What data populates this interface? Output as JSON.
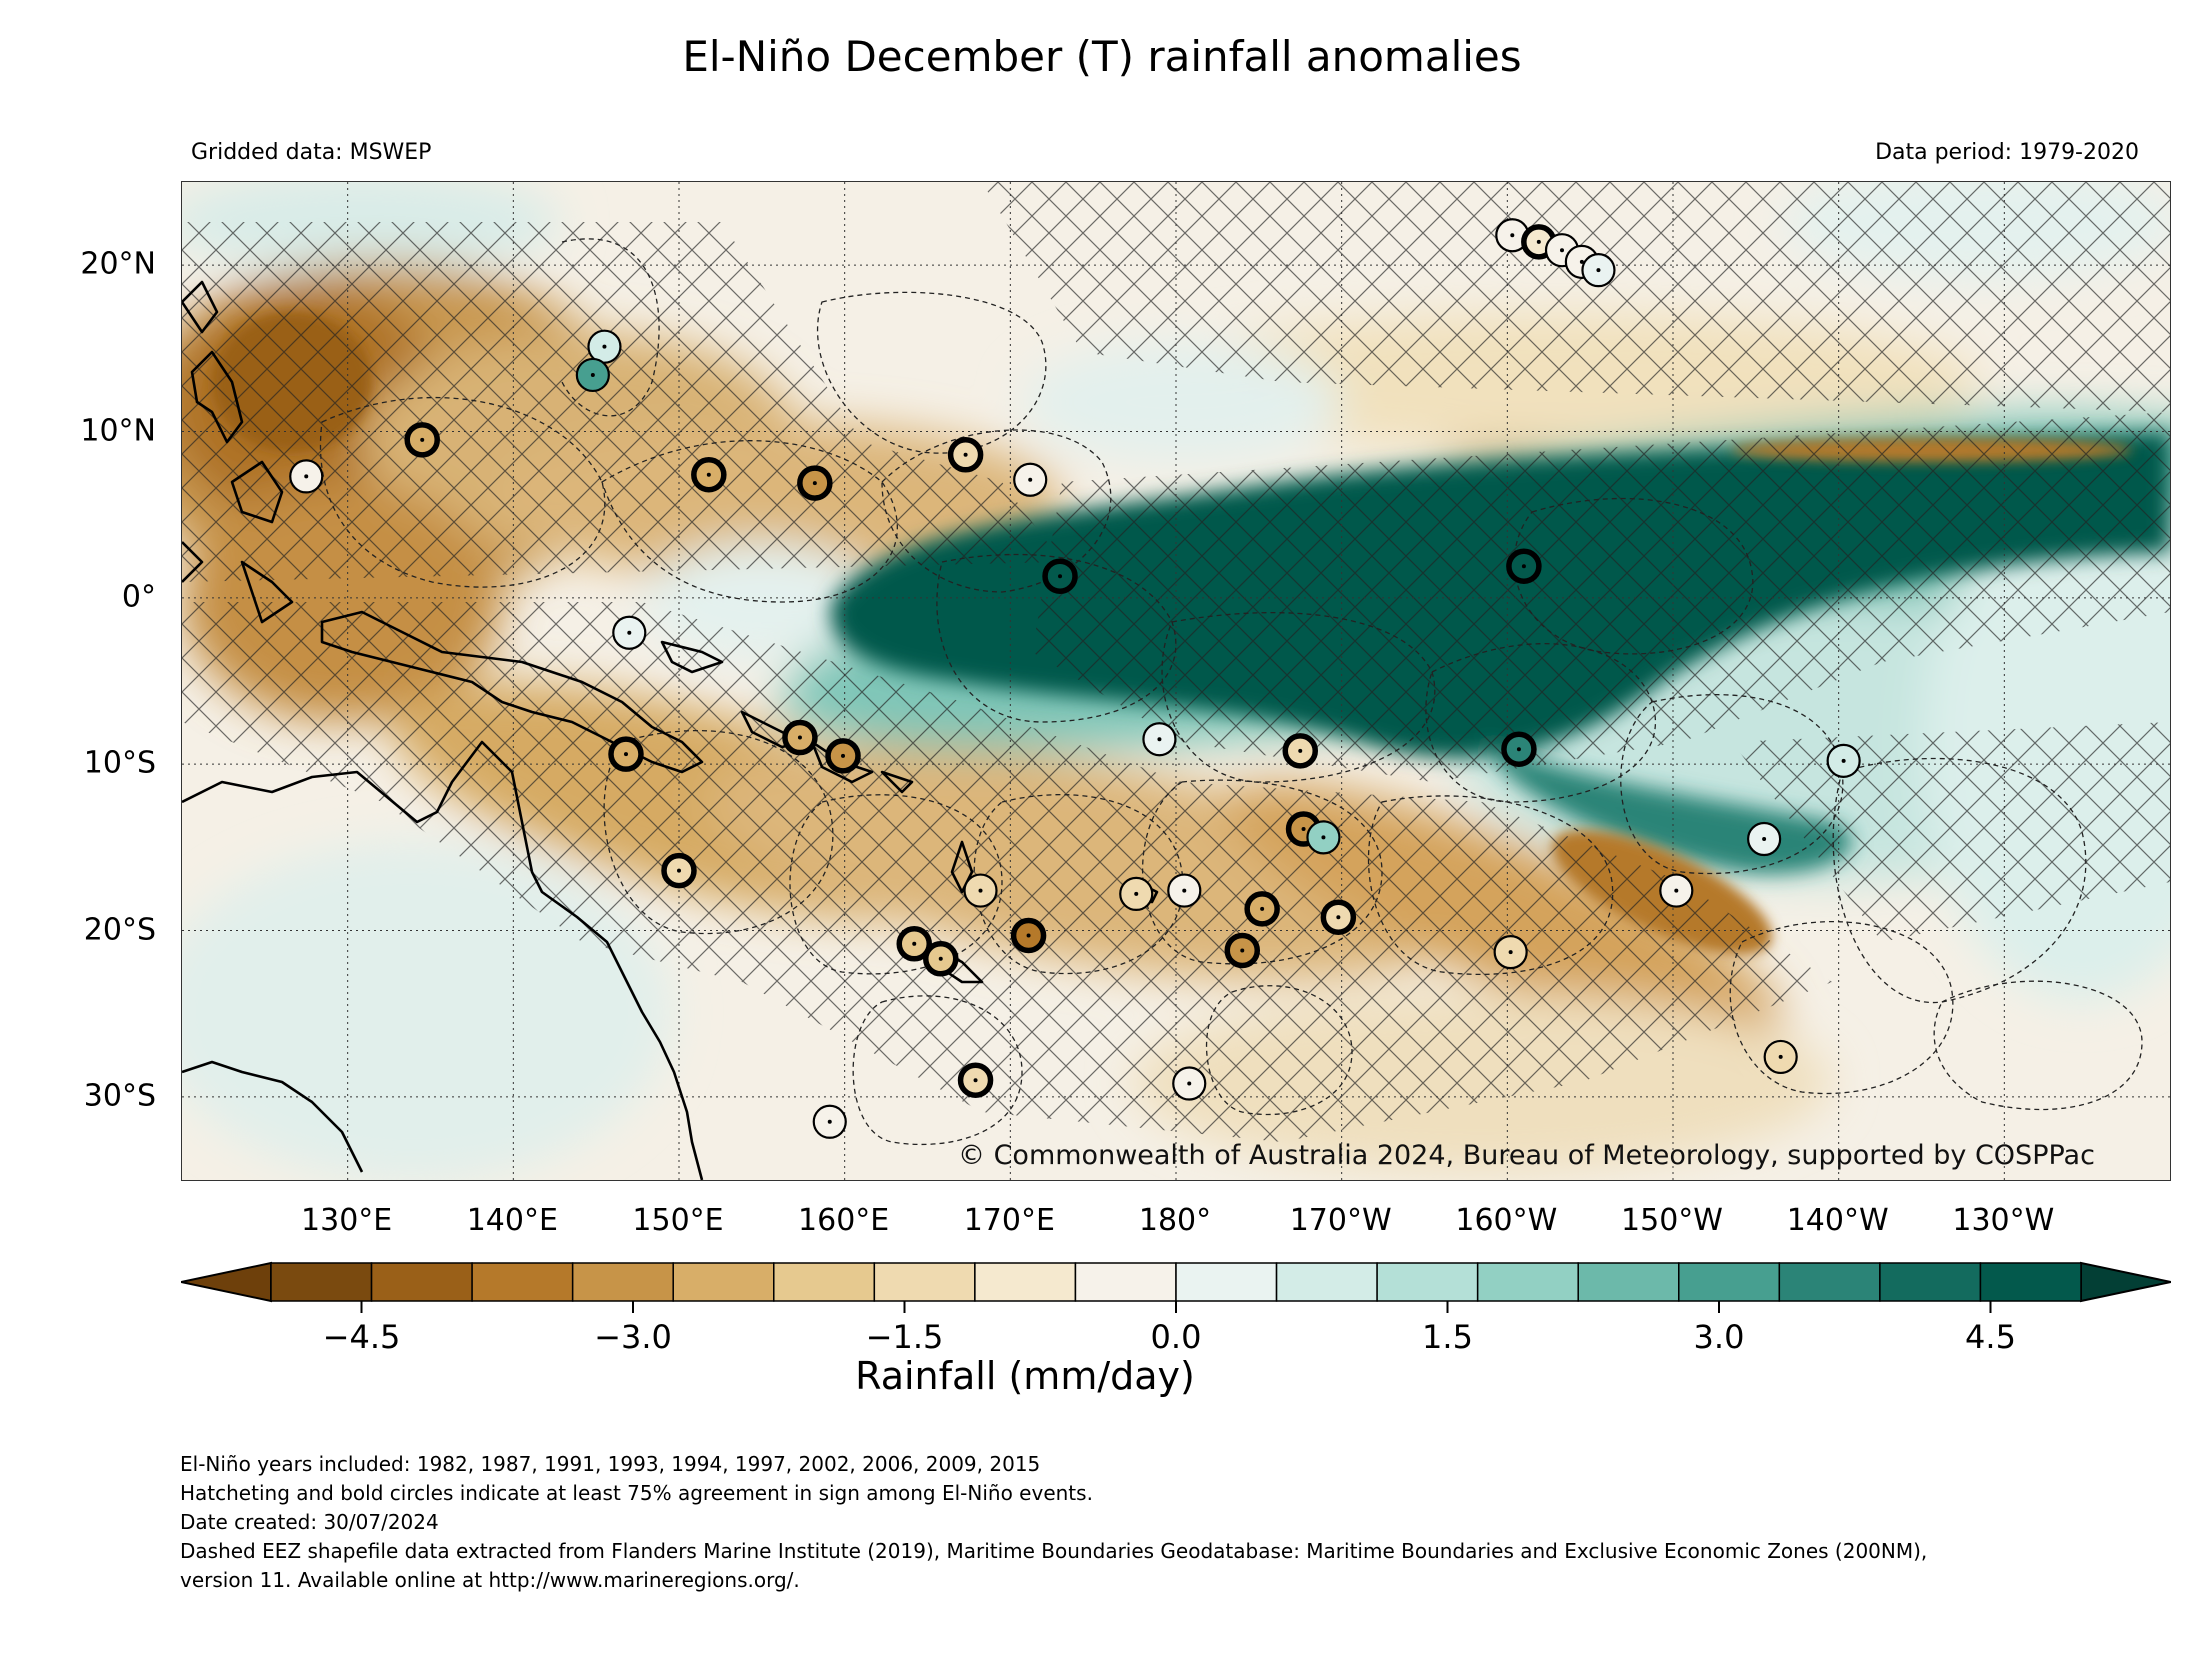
{
  "title": "El-Niño December (T) rainfall anomalies",
  "subtitle_left": "Gridded data: MSWEP",
  "subtitle_right": "Data period: 1979-2020",
  "copyright": "© Commonwealth of Australia 2024, Bureau of Meteorology, supported by COSPPac",
  "lon_labels": [
    "130°E",
    "140°E",
    "150°E",
    "160°E",
    "170°E",
    "180°",
    "170°W",
    "160°W",
    "150°W",
    "140°W",
    "130°W"
  ],
  "lat_labels": [
    "20°N",
    "10°N",
    "0°",
    "10°S",
    "20°S",
    "30°S"
  ],
  "colorbar": {
    "label": "Rainfall (mm/day)",
    "ticks": [
      "−4.5",
      "−3.0",
      "−1.5",
      "0.0",
      "1.5",
      "3.0",
      "4.5"
    ],
    "tick_values": [
      -4.5,
      -3.0,
      -1.5,
      0.0,
      1.5,
      3.0,
      4.5
    ],
    "range": [
      -5,
      5
    ],
    "colors": [
      "#7a4a0f",
      "#9a6018",
      "#b5792a",
      "#c79448",
      "#d8ae68",
      "#e6c98f",
      "#efdab0",
      "#f5e9cf",
      "#f6f2ea",
      "#eaf3f1",
      "#d3ece7",
      "#b4e0d7",
      "#92d0c3",
      "#6cb9aa",
      "#479f90",
      "#2b8477",
      "#136b5e",
      "#03594c"
    ],
    "under_color": "#6e400b",
    "over_color": "#033f35"
  },
  "notes": [
    "El-Niño years included: 1982, 1987, 1991, 1993, 1994, 1997, 2002, 2006, 2009, 2015",
    "Hatcheting and bold circles indicate at least 75% agreement in sign among El-Niño events.",
    "Date created: 30/07/2024",
    "Dashed EEZ shapefile data extracted from Flanders Marine Institute (2019), Maritime Boundaries Geodatabase: Maritime Boundaries and Exclusive Economic Zones (200NM),",
    "version 11. Available online at http://www.marineregions.org/."
  ],
  "map": {
    "lon_range_east": [
      120,
      240
    ],
    "lat_range": [
      -35,
      25
    ],
    "island_markers": [
      {
        "lon": 127.5,
        "lat": 7.3,
        "color": "#f6f2ea",
        "bold": false
      },
      {
        "lon": 134.5,
        "lat": 9.5,
        "color": "#d8ae68",
        "bold": true
      },
      {
        "lon": 145.5,
        "lat": 15.1,
        "color": "#d3ece7",
        "bold": false
      },
      {
        "lon": 144.8,
        "lat": 13.4,
        "color": "#479f90",
        "bold": false
      },
      {
        "lon": 151.8,
        "lat": 7.4,
        "color": "#d8ae68",
        "bold": true
      },
      {
        "lon": 158.2,
        "lat": 6.9,
        "color": "#c79448",
        "bold": true
      },
      {
        "lon": 167.3,
        "lat": 8.6,
        "color": "#efdab0",
        "bold": true
      },
      {
        "lon": 171.2,
        "lat": 7.1,
        "color": "#f6f2ea",
        "bold": false
      },
      {
        "lon": 173.0,
        "lat": 1.3,
        "color": "#03594c",
        "bold": true
      },
      {
        "lon": 201.0,
        "lat": 1.9,
        "color": "#03594c",
        "bold": true
      },
      {
        "lon": 200.3,
        "lat": 21.8,
        "color": "#f6f2ea",
        "bold": false
      },
      {
        "lon": 201.9,
        "lat": 21.4,
        "color": "#f5e9cf",
        "bold": true
      },
      {
        "lon": 203.3,
        "lat": 20.9,
        "color": "#f6f2ea",
        "bold": false
      },
      {
        "lon": 204.5,
        "lat": 20.2,
        "color": "#f6f2ea",
        "bold": false
      },
      {
        "lon": 205.5,
        "lat": 19.7,
        "color": "#eaf3f1",
        "bold": false
      },
      {
        "lon": 147.0,
        "lat": -2.1,
        "color": "#eaf3f1",
        "bold": false
      },
      {
        "lon": 146.8,
        "lat": -9.4,
        "color": "#d8ae68",
        "bold": true
      },
      {
        "lon": 150.0,
        "lat": -16.4,
        "color": "#efdab0",
        "bold": true
      },
      {
        "lon": 157.3,
        "lat": -8.4,
        "color": "#d8ae68",
        "bold": true
      },
      {
        "lon": 159.9,
        "lat": -9.5,
        "color": "#c79448",
        "bold": true
      },
      {
        "lon": 179.0,
        "lat": -8.5,
        "color": "#eaf3f1",
        "bold": false
      },
      {
        "lon": 187.5,
        "lat": -9.2,
        "color": "#efdab0",
        "bold": true
      },
      {
        "lon": 200.7,
        "lat": -9.1,
        "color": "#2b8477",
        "bold": true
      },
      {
        "lon": 187.7,
        "lat": -13.9,
        "color": "#c79448",
        "bold": true
      },
      {
        "lon": 188.9,
        "lat": -14.4,
        "color": "#92d0c3",
        "bold": false
      },
      {
        "lon": 168.2,
        "lat": -17.6,
        "color": "#efdab0",
        "bold": false
      },
      {
        "lon": 177.6,
        "lat": -17.8,
        "color": "#efdab0",
        "bold": false
      },
      {
        "lon": 180.5,
        "lat": -17.6,
        "color": "#f6f2ea",
        "bold": false
      },
      {
        "lon": 171.1,
        "lat": -20.3,
        "color": "#b5792a",
        "bold": true
      },
      {
        "lon": 164.2,
        "lat": -20.8,
        "color": "#e6c98f",
        "bold": true
      },
      {
        "lon": 165.8,
        "lat": -21.7,
        "color": "#e6c98f",
        "bold": true
      },
      {
        "lon": 185.2,
        "lat": -18.7,
        "color": "#d8ae68",
        "bold": true
      },
      {
        "lon": 184.0,
        "lat": -21.2,
        "color": "#c79448",
        "bold": true
      },
      {
        "lon": 189.8,
        "lat": -19.2,
        "color": "#efdab0",
        "bold": true
      },
      {
        "lon": 200.2,
        "lat": -21.3,
        "color": "#efdab0",
        "bold": false
      },
      {
        "lon": 167.9,
        "lat": -29.0,
        "color": "#efdab0",
        "bold": true
      },
      {
        "lon": 159.1,
        "lat": -31.5,
        "color": "#f6f2ea",
        "bold": false
      },
      {
        "lon": 180.8,
        "lat": -29.2,
        "color": "#f6f2ea",
        "bold": false
      },
      {
        "lon": 210.2,
        "lat": -17.6,
        "color": "#f6f2ea",
        "bold": false
      },
      {
        "lon": 215.5,
        "lat": -14.5,
        "color": "#eaf3f1",
        "bold": false
      },
      {
        "lon": 220.3,
        "lat": -9.8,
        "color": "#d3ece7",
        "bold": false
      },
      {
        "lon": 216.5,
        "lat": -27.6,
        "color": "#efdab0",
        "bold": false
      }
    ]
  }
}
